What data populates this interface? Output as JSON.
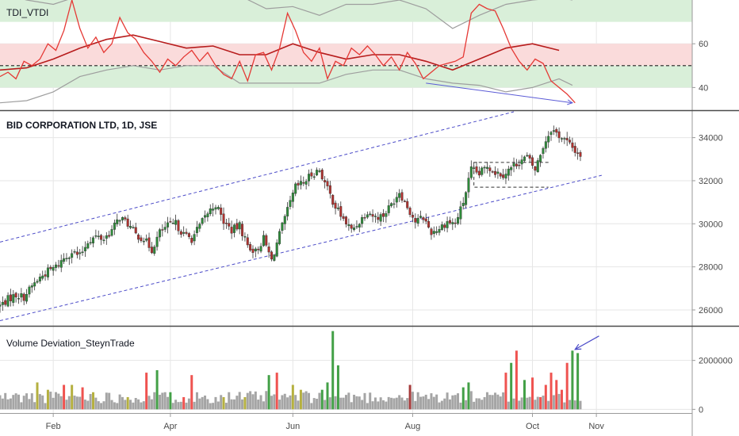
{
  "chart_data": [
    {
      "type": "line",
      "title": "TDI_VTDI",
      "y_ticks": [
        40,
        60
      ],
      "ylim": [
        30,
        80
      ],
      "bands": [
        {
          "name": "upper-zone",
          "from": 70,
          "to": 80,
          "color": "#d9efd9"
        },
        {
          "name": "mid-upper-zone",
          "from": 50,
          "to": 60,
          "color": "#fadbdb"
        },
        {
          "name": "mid-lower-zone",
          "from": 40,
          "to": 50,
          "color": "#d9efd9"
        }
      ],
      "midline": 50,
      "colors": {
        "rsi": "#e53935",
        "signal": "#b71c1c",
        "bands": "#9e9e9e",
        "divergence": "#5b5bd6"
      },
      "rsi": [
        [
          0,
          45
        ],
        [
          3,
          47
        ],
        [
          6,
          44
        ],
        [
          9,
          52
        ],
        [
          12,
          50
        ],
        [
          15,
          53
        ],
        [
          18,
          60
        ],
        [
          21,
          57
        ],
        [
          24,
          66
        ],
        [
          27,
          80
        ],
        [
          30,
          67
        ],
        [
          33,
          58
        ],
        [
          36,
          63
        ],
        [
          39,
          56
        ],
        [
          42,
          60
        ],
        [
          45,
          72
        ],
        [
          48,
          65
        ],
        [
          51,
          62
        ],
        [
          54,
          56
        ],
        [
          57,
          52
        ],
        [
          60,
          47
        ],
        [
          63,
          53
        ],
        [
          66,
          50
        ],
        [
          69,
          54
        ],
        [
          72,
          57
        ],
        [
          75,
          52
        ],
        [
          78,
          56
        ],
        [
          81,
          50
        ],
        [
          84,
          46
        ],
        [
          87,
          44
        ],
        [
          90,
          52
        ],
        [
          93,
          43
        ],
        [
          96,
          55
        ],
        [
          99,
          56
        ],
        [
          102,
          48
        ],
        [
          105,
          58
        ],
        [
          108,
          74
        ],
        [
          111,
          66
        ],
        [
          114,
          56
        ],
        [
          117,
          52
        ],
        [
          120,
          58
        ],
        [
          123,
          44
        ],
        [
          126,
          52
        ],
        [
          129,
          50
        ],
        [
          132,
          58
        ],
        [
          135,
          55
        ],
        [
          138,
          59
        ],
        [
          141,
          55
        ],
        [
          144,
          50
        ],
        [
          147,
          54
        ],
        [
          150,
          48
        ],
        [
          153,
          56
        ],
        [
          156,
          51
        ],
        [
          159,
          44
        ],
        [
          162,
          47
        ],
        [
          165,
          50
        ],
        [
          168,
          51
        ],
        [
          171,
          52
        ],
        [
          174,
          54
        ],
        [
          177,
          74
        ],
        [
          180,
          78
        ],
        [
          183,
          76
        ],
        [
          186,
          75
        ],
        [
          189,
          67
        ],
        [
          192,
          58
        ],
        [
          195,
          52
        ],
        [
          198,
          48
        ],
        [
          201,
          53
        ],
        [
          204,
          51
        ],
        [
          207,
          43
        ],
        [
          210,
          40
        ],
        [
          213,
          37
        ],
        [
          216,
          33
        ]
      ],
      "signal": [
        [
          0,
          48
        ],
        [
          10,
          49
        ],
        [
          20,
          53
        ],
        [
          30,
          58
        ],
        [
          40,
          62
        ],
        [
          50,
          64
        ],
        [
          60,
          61
        ],
        [
          70,
          58
        ],
        [
          80,
          59
        ],
        [
          90,
          55
        ],
        [
          100,
          55
        ],
        [
          110,
          60
        ],
        [
          120,
          56
        ],
        [
          130,
          53
        ],
        [
          140,
          55
        ],
        [
          150,
          55
        ],
        [
          160,
          52
        ],
        [
          170,
          48
        ],
        [
          180,
          53
        ],
        [
          190,
          58
        ],
        [
          200,
          60
        ],
        [
          210,
          57
        ]
      ],
      "upper_band": [
        [
          0,
          83
        ],
        [
          10,
          80
        ],
        [
          20,
          78
        ],
        [
          30,
          82
        ],
        [
          40,
          82
        ],
        [
          50,
          85
        ],
        [
          60,
          83
        ],
        [
          70,
          84
        ],
        [
          80,
          84
        ],
        [
          90,
          82
        ],
        [
          100,
          76
        ],
        [
          110,
          77
        ],
        [
          120,
          73
        ],
        [
          130,
          78
        ],
        [
          140,
          78
        ],
        [
          150,
          80
        ],
        [
          160,
          76
        ],
        [
          170,
          67
        ],
        [
          180,
          73
        ],
        [
          190,
          78
        ],
        [
          200,
          80
        ],
        [
          210,
          81
        ],
        [
          215,
          80
        ]
      ],
      "lower_band": [
        [
          0,
          33
        ],
        [
          10,
          34
        ],
        [
          20,
          38
        ],
        [
          30,
          45
        ],
        [
          40,
          48
        ],
        [
          50,
          50
        ],
        [
          60,
          48
        ],
        [
          70,
          50
        ],
        [
          80,
          50
        ],
        [
          90,
          42
        ],
        [
          100,
          42
        ],
        [
          110,
          42
        ],
        [
          120,
          42
        ],
        [
          130,
          46
        ],
        [
          140,
          48
        ],
        [
          150,
          48
        ],
        [
          160,
          44
        ],
        [
          170,
          42
        ],
        [
          180,
          41
        ],
        [
          190,
          38
        ],
        [
          200,
          40
        ],
        [
          210,
          44
        ],
        [
          215,
          41
        ]
      ],
      "divergence_line": {
        "from": [
          160,
          42
        ],
        "to": [
          215,
          33
        ]
      }
    },
    {
      "type": "candlestick",
      "title": "BID CORPORATION LTD, 1D, JSE",
      "y_ticks": [
        26000,
        28000,
        30000,
        32000,
        34000
      ],
      "ylim": [
        25300,
        35200
      ],
      "colors": {
        "up": "#2e8b3a",
        "down": "#b0322f",
        "channel": "#4b4bc8"
      },
      "closes": [
        [
          0,
          26200
        ],
        [
          3,
          26500
        ],
        [
          6,
          26700
        ],
        [
          9,
          26600
        ],
        [
          12,
          27100
        ],
        [
          15,
          27500
        ],
        [
          18,
          27800
        ],
        [
          21,
          28000
        ],
        [
          24,
          28400
        ],
        [
          27,
          28700
        ],
        [
          30,
          28500
        ],
        [
          33,
          29200
        ],
        [
          36,
          29400
        ],
        [
          39,
          29300
        ],
        [
          42,
          29700
        ],
        [
          45,
          30300
        ],
        [
          48,
          30000
        ],
        [
          51,
          29500
        ],
        [
          54,
          29300
        ],
        [
          57,
          28800
        ],
        [
          60,
          29600
        ],
        [
          63,
          29900
        ],
        [
          66,
          30000
        ],
        [
          69,
          29500
        ],
        [
          72,
          29300
        ],
        [
          75,
          29900
        ],
        [
          78,
          30500
        ],
        [
          81,
          30900
        ],
        [
          84,
          30100
        ],
        [
          87,
          29700
        ],
        [
          90,
          29900
        ],
        [
          93,
          29000
        ],
        [
          96,
          28700
        ],
        [
          99,
          29300
        ],
        [
          102,
          28300
        ],
        [
          105,
          29500
        ],
        [
          108,
          30600
        ],
        [
          111,
          31700
        ],
        [
          114,
          31900
        ],
        [
          117,
          32300
        ],
        [
          120,
          32500
        ],
        [
          123,
          31600
        ],
        [
          126,
          30800
        ],
        [
          129,
          30200
        ],
        [
          132,
          29700
        ],
        [
          135,
          30100
        ],
        [
          138,
          30600
        ],
        [
          141,
          30300
        ],
        [
          144,
          30400
        ],
        [
          147,
          30900
        ],
        [
          150,
          31500
        ],
        [
          153,
          30800
        ],
        [
          156,
          30100
        ],
        [
          159,
          30300
        ],
        [
          162,
          29600
        ],
        [
          165,
          29800
        ],
        [
          168,
          30100
        ],
        [
          171,
          30000
        ],
        [
          174,
          31000
        ],
        [
          177,
          32500
        ],
        [
          180,
          32300
        ],
        [
          183,
          32700
        ],
        [
          186,
          32400
        ],
        [
          189,
          32300
        ],
        [
          192,
          32600
        ],
        [
          195,
          32900
        ],
        [
          198,
          33100
        ],
        [
          201,
          32500
        ],
        [
          204,
          33600
        ],
        [
          207,
          34400
        ],
        [
          210,
          34100
        ],
        [
          213,
          33800
        ],
        [
          216,
          33400
        ],
        [
          218,
          33200
        ]
      ],
      "channel_upper": {
        "from": [
          0,
          29150
        ],
        "to": [
          193,
          35200
        ]
      },
      "channel_lower": {
        "from": [
          0,
          25500
        ],
        "to": [
          226,
          32250
        ]
      },
      "consolidation_box": {
        "x_from": 178,
        "x_to": 206,
        "upper": 32850,
        "lower": 31700
      }
    },
    {
      "type": "bar",
      "title": "Volume Deviation_SteynTrade",
      "y_ticks": [
        0,
        2000000
      ],
      "ylim": [
        -150000,
        3350000
      ],
      "colors": {
        "neutral": "#a5a5a5",
        "olive": "#b5b040",
        "green": "#43a047",
        "red": "#ef5350",
        "darkred": "#a63c3c",
        "arrow": "#4b4bc8"
      },
      "highlighted_bars": [
        [
          14,
          "olive",
          1100000
        ],
        [
          18,
          "olive",
          800000
        ],
        [
          24,
          "red",
          1000000
        ],
        [
          27,
          "olive",
          1000000
        ],
        [
          31,
          "red",
          900000
        ],
        [
          35,
          "olive",
          700000
        ],
        [
          48,
          "olive",
          500000
        ],
        [
          55,
          "red",
          1500000
        ],
        [
          59,
          "green",
          1600000
        ],
        [
          64,
          "green",
          700000
        ],
        [
          69,
          "red",
          500000
        ],
        [
          72,
          "red",
          1400000
        ],
        [
          84,
          "olive",
          500000
        ],
        [
          92,
          "olive",
          500000
        ],
        [
          101,
          "green",
          1400000
        ],
        [
          104,
          "red",
          1500000
        ],
        [
          110,
          "olive",
          1000000
        ],
        [
          113,
          "olive",
          800000
        ],
        [
          121,
          "green",
          800000
        ],
        [
          123,
          "green",
          1100000
        ],
        [
          125,
          "green",
          3200000
        ],
        [
          127,
          "green",
          1800000
        ],
        [
          154,
          "darkred",
          1000000
        ],
        [
          174,
          "green",
          900000
        ],
        [
          176,
          "green",
          1100000
        ],
        [
          190,
          "red",
          1500000
        ],
        [
          192,
          "green",
          1900000
        ],
        [
          194,
          "red",
          2400000
        ],
        [
          197,
          "green",
          1200000
        ],
        [
          200,
          "red",
          1300000
        ],
        [
          203,
          "red",
          500000
        ],
        [
          205,
          "red",
          1000000
        ],
        [
          207,
          "red",
          1500000
        ],
        [
          209,
          "red",
          1200000
        ],
        [
          211,
          "red",
          800000
        ],
        [
          213,
          "red",
          1900000
        ],
        [
          215,
          "green",
          2400000
        ],
        [
          217,
          "green",
          2300000
        ]
      ],
      "arrow": {
        "from": [
          225,
          3000000
        ],
        "to": [
          216,
          2450000
        ]
      }
    }
  ],
  "x_axis": {
    "labels": [
      {
        "text": "Feb",
        "t": 20
      },
      {
        "text": "Apr",
        "t": 64
      },
      {
        "text": "Jun",
        "t": 110
      },
      {
        "text": "Aug",
        "t": 155
      },
      {
        "text": "Oct",
        "t": 200
      },
      {
        "text": "Nov",
        "t": 224
      }
    ],
    "t_range": [
      0,
      260
    ]
  },
  "colors": {
    "grid": "#e6e6e6",
    "border": "#9a9a9a",
    "panel_divider": "#4a4a4a",
    "tick_text": "#4a4a4a"
  }
}
